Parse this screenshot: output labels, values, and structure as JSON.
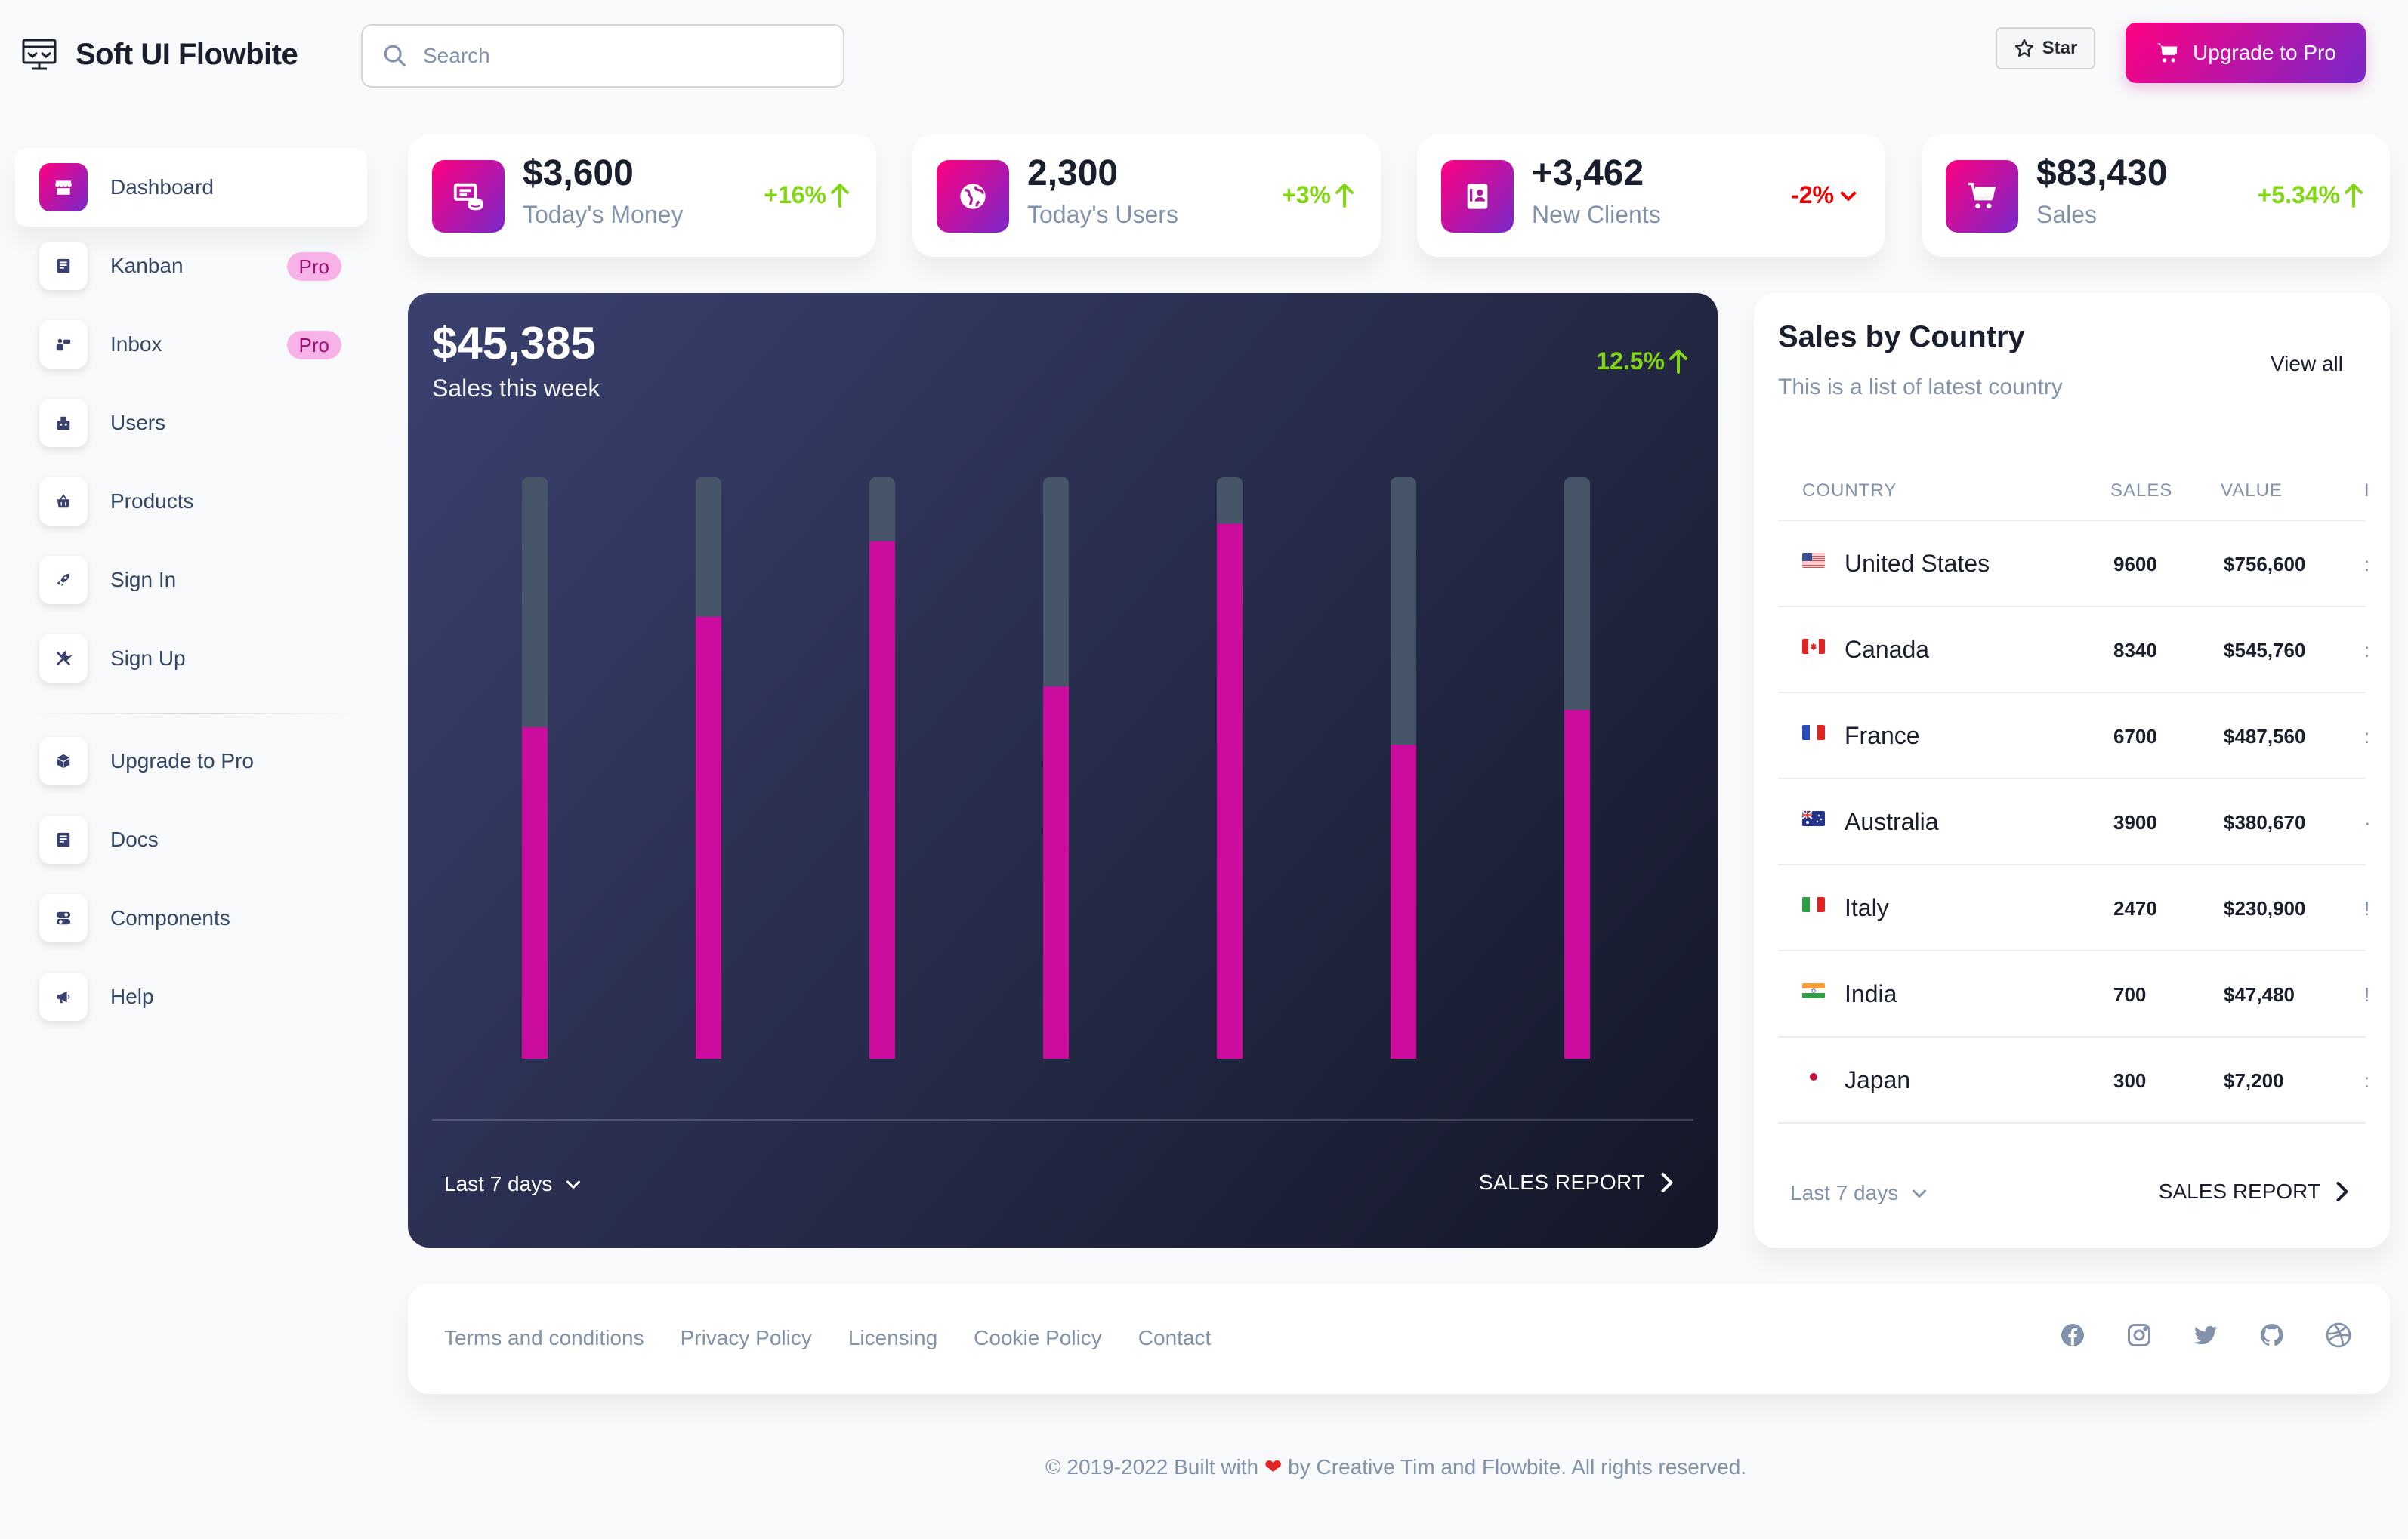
{
  "app": {
    "name": "Soft UI Flowbite"
  },
  "search": {
    "placeholder": "Search"
  },
  "header": {
    "star_label": "Star",
    "upgrade_label": "Upgrade to Pro"
  },
  "sidebar": {
    "items": [
      {
        "label": "Dashboard",
        "icon": "store-icon",
        "active": true
      },
      {
        "label": "Kanban",
        "icon": "document-icon",
        "badge": "Pro"
      },
      {
        "label": "Inbox",
        "icon": "inbox-icon",
        "badge": "Pro"
      },
      {
        "label": "Users",
        "icon": "users-icon"
      },
      {
        "label": "Products",
        "icon": "basket-icon"
      },
      {
        "label": "Sign In",
        "icon": "rocket-icon"
      },
      {
        "label": "Sign Up",
        "icon": "tools-icon"
      },
      {
        "label": "Upgrade to Pro",
        "icon": "box-icon"
      },
      {
        "label": "Docs",
        "icon": "docs-icon"
      },
      {
        "label": "Components",
        "icon": "toggle-icon"
      },
      {
        "label": "Help",
        "icon": "megaphone-icon"
      }
    ]
  },
  "stats": [
    {
      "value": "$3,600",
      "label": "Today's Money",
      "change": "+16%",
      "direction": "up",
      "icon": "money-icon"
    },
    {
      "value": "2,300",
      "label": "Today's Users",
      "change": "+3%",
      "direction": "up",
      "icon": "globe-icon"
    },
    {
      "value": "+3,462",
      "label": "New Clients",
      "change": "-2%",
      "direction": "down",
      "icon": "client-icon"
    },
    {
      "value": "$83,430",
      "label": "Sales",
      "change": "+5.34%",
      "direction": "up",
      "icon": "cart-icon"
    }
  ],
  "sales_chart": {
    "total": "$45,385",
    "subtitle": "Sales this week",
    "change": "12.5%",
    "range_label": "Last 7 days",
    "report_label": "SALES REPORT",
    "colors": {
      "fill": "#cb0c9f",
      "track": "#475569"
    }
  },
  "chart_data": {
    "type": "bar",
    "categories": [
      "",
      "",
      "",
      "",
      "",
      "",
      ""
    ],
    "values": [
      57,
      76,
      89,
      64,
      92,
      54,
      60
    ],
    "ylim": [
      0,
      100
    ],
    "grid": false,
    "legend": "none"
  },
  "countries": {
    "title": "Sales by Country",
    "subtitle": "This is a list of latest country",
    "view_all": "View all",
    "headers": [
      "COUNTRY",
      "SALES",
      "VALUE",
      "I"
    ],
    "rows": [
      {
        "country": "United States",
        "sales": "9600",
        "value": "$756,600",
        "flag": "us",
        "trail": ":"
      },
      {
        "country": "Canada",
        "sales": "8340",
        "value": "$545,760",
        "flag": "ca",
        "trail": ":"
      },
      {
        "country": "France",
        "sales": "6700",
        "value": "$487,560",
        "flag": "fr",
        "trail": ":"
      },
      {
        "country": "Australia",
        "sales": "3900",
        "value": "$380,670",
        "flag": "au",
        "trail": "·"
      },
      {
        "country": "Italy",
        "sales": "2470",
        "value": "$230,900",
        "flag": "it",
        "trail": "!"
      },
      {
        "country": "India",
        "sales": "700",
        "value": "$47,480",
        "flag": "in",
        "trail": "!"
      },
      {
        "country": "Japan",
        "sales": "300",
        "value": "$7,200",
        "flag": "jp",
        "trail": ":"
      }
    ],
    "range_label": "Last 7 days",
    "report_label": "SALES REPORT"
  },
  "footer": {
    "links": [
      "Terms and conditions",
      "Privacy Policy",
      "Licensing",
      "Cookie Policy",
      "Contact"
    ],
    "social_icons": [
      "facebook-icon",
      "instagram-icon",
      "twitter-icon",
      "github-icon",
      "dribbble-icon"
    ],
    "copyright_before": "© 2019-2022 Built with",
    "copyright_after": "by Creative Tim and Flowbite. All rights reserved."
  }
}
